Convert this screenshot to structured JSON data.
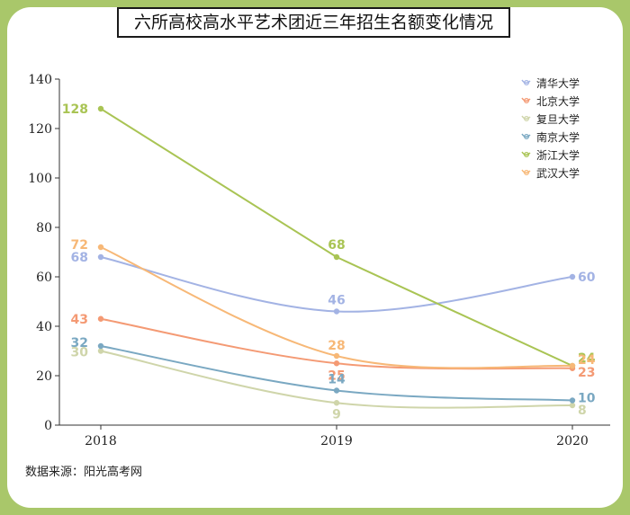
{
  "chart_data": {
    "type": "line",
    "title": "六所高校高水平艺术团近三年招生名额变化情况",
    "categories": [
      "2018",
      "2019",
      "2020"
    ],
    "ylim": [
      0,
      140
    ],
    "yticks": [
      0,
      20,
      40,
      60,
      80,
      100,
      120,
      140
    ],
    "xlabel": "",
    "ylabel": "",
    "legend_position": "top-right",
    "series": [
      {
        "name": "清华大学",
        "values": [
          68,
          46,
          60
        ],
        "color": "#a3b3e4",
        "smooth": true
      },
      {
        "name": "北京大学",
        "values": [
          43,
          25,
          23
        ],
        "color": "#f49a74",
        "smooth": true
      },
      {
        "name": "复旦大学",
        "values": [
          30,
          9,
          8
        ],
        "color": "#cfd5aa",
        "smooth": true
      },
      {
        "name": "南京大学",
        "values": [
          32,
          14,
          10
        ],
        "color": "#7aa8c2",
        "smooth": true
      },
      {
        "name": "浙江大学",
        "values": [
          128,
          68,
          24
        ],
        "color": "#a9c454",
        "smooth": false
      },
      {
        "name": "武汉大学",
        "values": [
          72,
          28,
          24
        ],
        "color": "#f7b877",
        "smooth": true
      }
    ]
  },
  "source_text": "数据来源：阳光高考网",
  "colors": {
    "frame": "#a9c76a",
    "card": "#ffffff"
  }
}
